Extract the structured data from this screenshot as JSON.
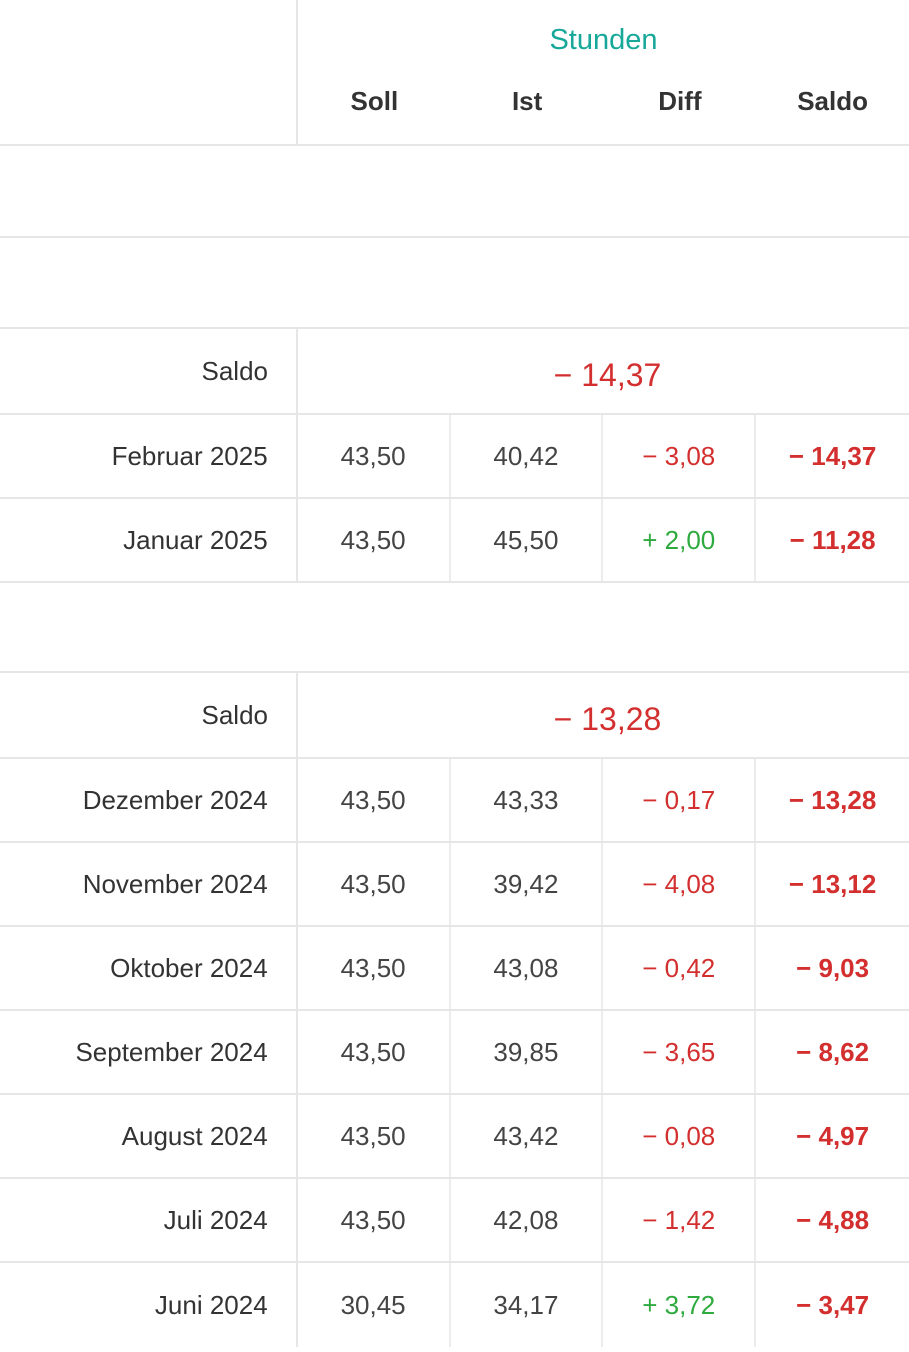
{
  "header": {
    "group_title": "Stunden",
    "columns": [
      "Soll",
      "Ist",
      "Diff",
      "Saldo"
    ]
  },
  "colors": {
    "accent": "#17a89a",
    "negative": "#d32f2f",
    "positive": "#2eaa3e"
  },
  "groups": [
    {
      "saldo_label": "Saldo",
      "saldo_value": "− 14,37",
      "rows": [
        {
          "month": "Februar 2025",
          "soll": "43,50",
          "ist": "40,42",
          "diff": "− 3,08",
          "saldo": "− 14,37"
        },
        {
          "month": "Januar 2025",
          "soll": "43,50",
          "ist": "45,50",
          "diff": "+ 2,00",
          "saldo": "− 11,28"
        }
      ]
    },
    {
      "saldo_label": "Saldo",
      "saldo_value": "− 13,28",
      "rows": [
        {
          "month": "Dezember 2024",
          "soll": "43,50",
          "ist": "43,33",
          "diff": "− 0,17",
          "saldo": "− 13,28"
        },
        {
          "month": "November 2024",
          "soll": "43,50",
          "ist": "39,42",
          "diff": "− 4,08",
          "saldo": "− 13,12"
        },
        {
          "month": "Oktober 2024",
          "soll": "43,50",
          "ist": "43,08",
          "diff": "− 0,42",
          "saldo": "− 9,03"
        },
        {
          "month": "September 2024",
          "soll": "43,50",
          "ist": "39,85",
          "diff": "− 3,65",
          "saldo": "− 8,62"
        },
        {
          "month": "August 2024",
          "soll": "43,50",
          "ist": "43,42",
          "diff": "− 0,08",
          "saldo": "− 4,97"
        },
        {
          "month": "Juli 2024",
          "soll": "43,50",
          "ist": "42,08",
          "diff": "− 1,42",
          "saldo": "− 4,88"
        },
        {
          "month": "Juni 2024",
          "soll": "30,45",
          "ist": "34,17",
          "diff": "+ 3,72",
          "saldo": "− 3,47"
        }
      ]
    }
  ]
}
